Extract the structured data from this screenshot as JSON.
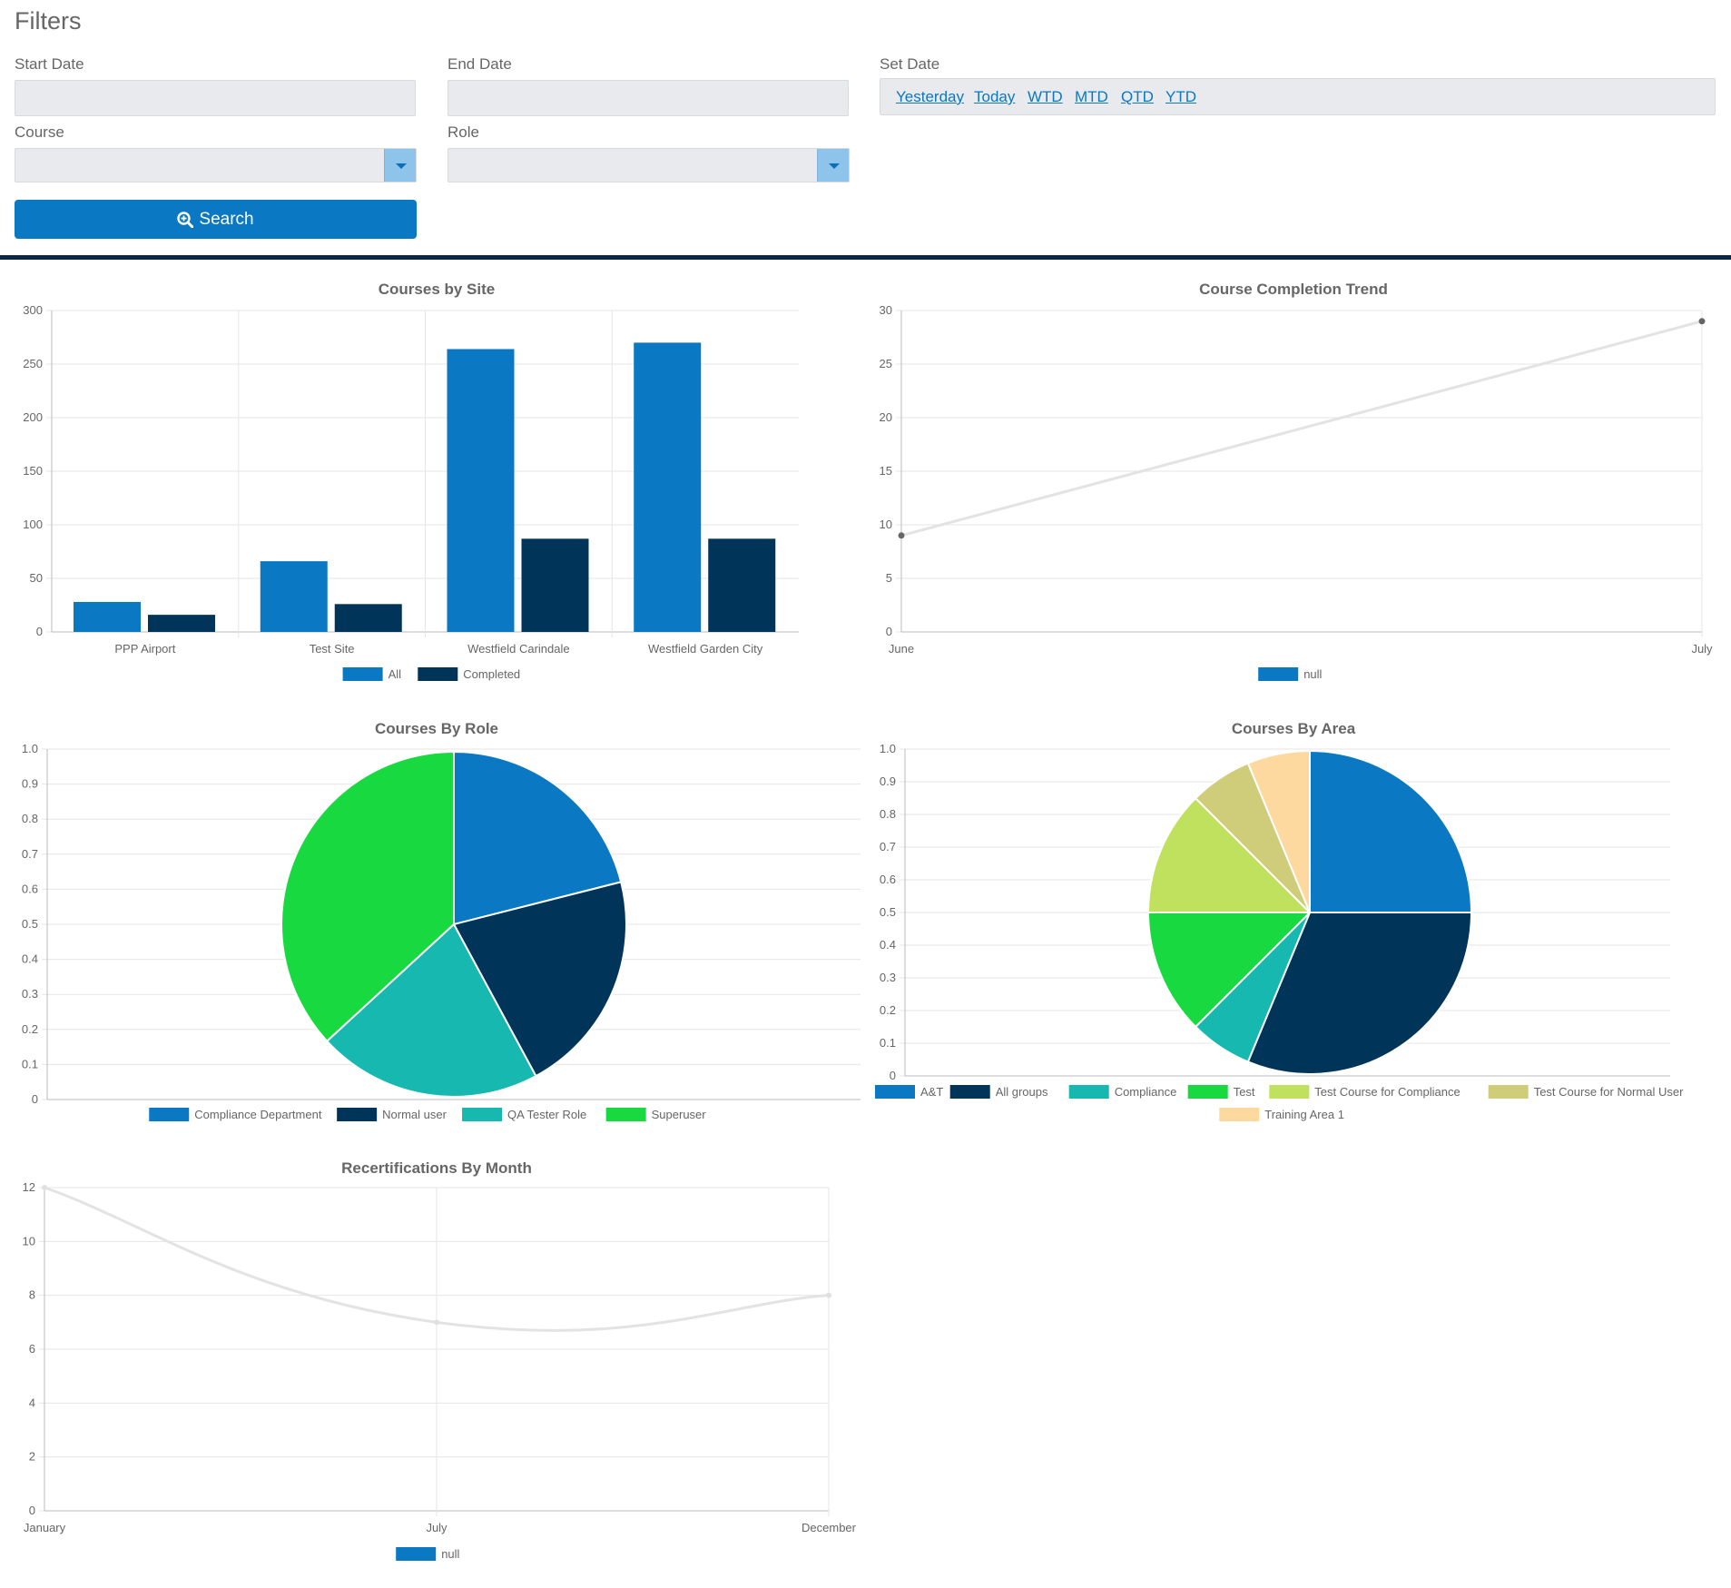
{
  "filters": {
    "title": "Filters",
    "start_date_label": "Start Date",
    "end_date_label": "End Date",
    "set_date_label": "Set Date",
    "course_label": "Course",
    "role_label": "Role",
    "quick_dates": [
      "Yesterday",
      "Today",
      "WTD",
      "MTD",
      "QTD",
      "YTD"
    ],
    "search_label": "Search"
  },
  "colors": {
    "primary": "#0a78c2",
    "dark": "#003459",
    "teal": "#16b8b0",
    "green": "#19d940",
    "lime": "#c0e15e",
    "olive": "#cfcc7a",
    "peach": "#fdd9a0",
    "line": "#e3e3e3",
    "divider": "#0d2744"
  },
  "chart_data": [
    {
      "id": "courses-by-site",
      "type": "bar",
      "title": "Courses by Site",
      "categories": [
        "PPP Airport",
        "Test Site",
        "Westfield Carindale",
        "Westfield Garden City"
      ],
      "series": [
        {
          "name": "All",
          "values": [
            28,
            66,
            264,
            270
          ]
        },
        {
          "name": "Completed",
          "values": [
            16,
            26,
            87,
            87
          ]
        }
      ],
      "ylim": [
        0,
        300
      ],
      "yticks": [
        0,
        50,
        100,
        150,
        200,
        250,
        300
      ],
      "legend": "bottom"
    },
    {
      "id": "course-completion-trend",
      "type": "line",
      "title": "Course Completion Trend",
      "x": [
        "June",
        "July"
      ],
      "series": [
        {
          "name": "null",
          "values": [
            9,
            29
          ]
        }
      ],
      "ylim": [
        0,
        30
      ],
      "yticks": [
        0,
        5,
        10,
        15,
        20,
        25,
        30
      ],
      "legend": "bottom"
    },
    {
      "id": "courses-by-role",
      "type": "pie",
      "title": "Courses By Role",
      "labels": [
        "Compliance Department",
        "Normal user",
        "QA Tester Role",
        "Superuser"
      ],
      "values": [
        2,
        2,
        2,
        3.5
      ],
      "yticks": [
        "0",
        "0.1",
        "0.2",
        "0.3",
        "0.4",
        "0.5",
        "0.6",
        "0.7",
        "0.8",
        "0.9",
        "1.0"
      ],
      "legend": "bottom"
    },
    {
      "id": "courses-by-area",
      "type": "pie",
      "title": "Courses By Area",
      "labels": [
        "A&T",
        "All groups",
        "Compliance",
        "Test",
        "Test Course for Compliance",
        "Test Course for Normal User",
        "Training Area 1"
      ],
      "values": [
        4,
        5,
        1,
        2,
        2,
        1,
        1
      ],
      "yticks": [
        "0",
        "0.1",
        "0.2",
        "0.3",
        "0.4",
        "0.5",
        "0.6",
        "0.7",
        "0.8",
        "0.9",
        "1.0"
      ],
      "legend": "bottom"
    },
    {
      "id": "recertifications-by-month",
      "type": "line",
      "title": "Recertifications By Month",
      "x": [
        "January",
        "July",
        "December"
      ],
      "series": [
        {
          "name": "null",
          "values": [
            12,
            7,
            8
          ]
        }
      ],
      "ylim": [
        0,
        12
      ],
      "yticks": [
        0,
        2,
        4,
        6,
        8,
        10,
        12
      ],
      "legend": "bottom"
    }
  ]
}
